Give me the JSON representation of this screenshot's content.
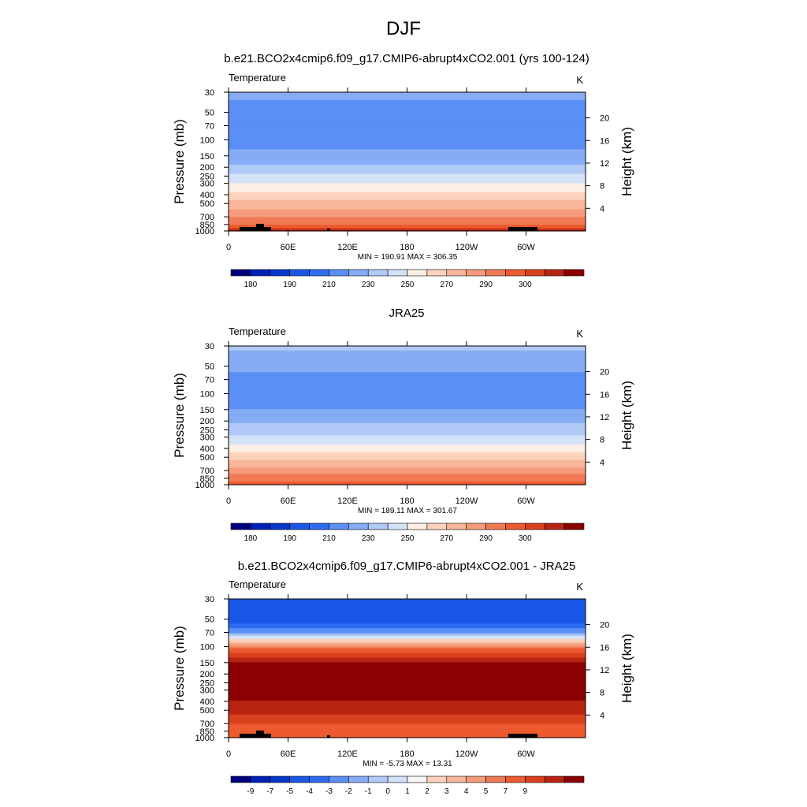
{
  "page_title": "DJF",
  "colors": {
    "abs_palette": [
      "#00007f",
      "#0020b8",
      "#0639c9",
      "#1958e6",
      "#2c6df2",
      "#5b8ff5",
      "#86acf6",
      "#b0c9f7",
      "#d4e2f8",
      "#fbeee3",
      "#fbd2bb",
      "#f8b69b",
      "#f59a7a",
      "#f07a55",
      "#ec5a2f",
      "#d9401d",
      "#b92412",
      "#8b0000"
    ],
    "diff_palette": [
      "#00007f",
      "#0020b8",
      "#0639c9",
      "#1958e6",
      "#2c6df2",
      "#5b8ff5",
      "#86acf6",
      "#b0c9f7",
      "#d4e2f8",
      "#f5f5f5",
      "#fbd2bb",
      "#f8b69b",
      "#f59a7a",
      "#f07a55",
      "#ec5a2f",
      "#d9401d",
      "#b92412",
      "#8b0000"
    ],
    "land": "#000000"
  },
  "chart_data": [
    {
      "type": "contour",
      "title": "b.e21.BCO2x4cmip6.f09_g17.CMIP6-abrupt4xCO2.001 (yrs 100-124)",
      "variable_label": "Temperature",
      "units": "K",
      "ylabel": "Pressure (mb)",
      "ylabel_right": "Height (km)",
      "stats": "MIN = 190.91  MAX = 306.35",
      "min": 190.91,
      "max": 306.35,
      "x_ticks": [
        "0",
        "60E",
        "120E",
        "180",
        "120W",
        "60W"
      ],
      "y_ticks": [
        "30",
        "50",
        "70",
        "100",
        "150",
        "200",
        "250",
        "300",
        "400",
        "500",
        "700",
        "850",
        "1000"
      ],
      "height_ticks": [
        "20",
        "16",
        "12",
        "8",
        "4"
      ],
      "colorbar_labels": [
        "180",
        "190",
        "210",
        "230",
        "250",
        "270",
        "290",
        "300"
      ],
      "profile": {
        "levels_mb": [
          30,
          50,
          70,
          100,
          150,
          200,
          250,
          300,
          400,
          500,
          700,
          850,
          1000
        ],
        "temperature_K": [
          213,
          205,
          204,
          205,
          213,
          222,
          232,
          240,
          253,
          263,
          280,
          290,
          302
        ]
      }
    },
    {
      "type": "contour",
      "title": "JRA25",
      "variable_label": "Temperature",
      "units": "K",
      "ylabel": "Pressure (mb)",
      "ylabel_right": "Height (km)",
      "stats": "MIN = 189.11  MAX = 301.67",
      "min": 189.11,
      "max": 301.67,
      "x_ticks": [
        "0",
        "60E",
        "120E",
        "180",
        "120W",
        "60W"
      ],
      "y_ticks": [
        "30",
        "50",
        "70",
        "100",
        "150",
        "200",
        "250",
        "300",
        "400",
        "500",
        "700",
        "850",
        "1000"
      ],
      "height_ticks": [
        "20",
        "16",
        "12",
        "8",
        "4"
      ],
      "colorbar_labels": [
        "180",
        "190",
        "210",
        "230",
        "250",
        "270",
        "290",
        "300"
      ],
      "profile": {
        "levels_mb": [
          30,
          50,
          70,
          100,
          150,
          200,
          250,
          300,
          400,
          500,
          700,
          850,
          1000
        ],
        "temperature_K": [
          222,
          212,
          207,
          204,
          210,
          218,
          225,
          232,
          245,
          256,
          275,
          285,
          296
        ]
      }
    },
    {
      "type": "contour",
      "title": "b.e21.BCO2x4cmip6.f09_g17.CMIP6-abrupt4xCO2.001 - JRA25",
      "variable_label": "Temperature",
      "units": "K",
      "ylabel": "Pressure (mb)",
      "ylabel_right": "Height (km)",
      "stats": "MIN = -5.73  MAX = 13.31",
      "min": -5.73,
      "max": 13.31,
      "x_ticks": [
        "0",
        "60E",
        "120E",
        "180",
        "120W",
        "60W"
      ],
      "y_ticks": [
        "30",
        "50",
        "70",
        "100",
        "150",
        "200",
        "250",
        "300",
        "400",
        "500",
        "700",
        "850",
        "1000"
      ],
      "height_ticks": [
        "20",
        "16",
        "12",
        "8",
        "4"
      ],
      "colorbar_labels": [
        "-9",
        "-7",
        "-5",
        "-4",
        "-3",
        "-2",
        "-1",
        "0",
        "1",
        "2",
        "3",
        "4",
        "5",
        "7",
        "9"
      ],
      "profile": {
        "levels_mb": [
          30,
          50,
          70,
          100,
          150,
          200,
          250,
          300,
          400,
          500,
          700,
          850,
          1000
        ],
        "temperature_K": [
          -5,
          -5,
          -2,
          4,
          11,
          12,
          12,
          12,
          11,
          10,
          7,
          6,
          6
        ]
      }
    }
  ]
}
